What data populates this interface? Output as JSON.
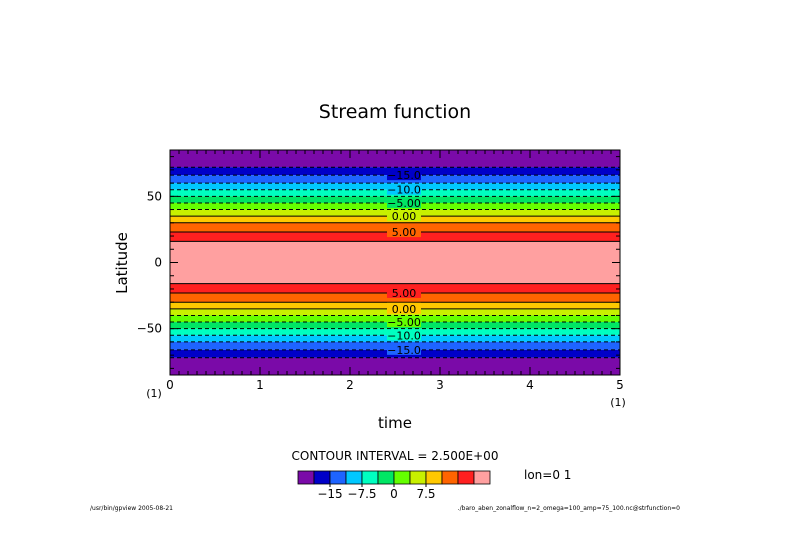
{
  "chart_data": {
    "type": "heatmap",
    "title": "Stream function",
    "xlabel": "time",
    "ylabel": "Latitude",
    "xlim": [
      0,
      5
    ],
    "ylim": [
      -85,
      85
    ],
    "x_ticks": [
      "0",
      "1",
      "2",
      "3",
      "4",
      "5"
    ],
    "x_unit_left": "(1)",
    "x_unit_right": "(1)",
    "y_ticks": [
      {
        "value": 50,
        "label": "50"
      },
      {
        "value": 0,
        "label": "0"
      },
      {
        "value": -50,
        "label": "−50"
      }
    ],
    "bands": [
      {
        "from": 72,
        "to": 85,
        "level": 0
      },
      {
        "from": 66,
        "to": 72,
        "level": 1
      },
      {
        "from": 60,
        "to": 66,
        "level": 2
      },
      {
        "from": 55,
        "to": 60,
        "level": 3
      },
      {
        "from": 50,
        "to": 55,
        "level": 4
      },
      {
        "from": 45,
        "to": 50,
        "level": 5
      },
      {
        "from": 40,
        "to": 45,
        "level": 6
      },
      {
        "from": 35,
        "to": 40,
        "level": 7
      },
      {
        "from": 30,
        "to": 35,
        "level": 8
      },
      {
        "from": 23,
        "to": 30,
        "level": 9
      },
      {
        "from": 16,
        "to": 23,
        "level": 10
      },
      {
        "from": -16,
        "to": 16,
        "level": 11
      },
      {
        "from": -23,
        "to": -16,
        "level": 10
      },
      {
        "from": -30,
        "to": -23,
        "level": 9
      },
      {
        "from": -35,
        "to": -30,
        "level": 8
      },
      {
        "from": -40,
        "to": -35,
        "level": 7
      },
      {
        "from": -45,
        "to": -40,
        "level": 6
      },
      {
        "from": -50,
        "to": -45,
        "level": 5
      },
      {
        "from": -55,
        "to": -50,
        "level": 4
      },
      {
        "from": -60,
        "to": -55,
        "level": 3
      },
      {
        "from": -66,
        "to": -60,
        "level": 2
      },
      {
        "from": -72,
        "to": -66,
        "level": 1
      },
      {
        "from": -85,
        "to": -72,
        "level": 0
      }
    ],
    "contours": [
      {
        "lat": 72,
        "dashed": true
      },
      {
        "lat": 66,
        "dashed": true
      },
      {
        "lat": 60,
        "dashed": true
      },
      {
        "lat": 55,
        "dashed": true
      },
      {
        "lat": 50,
        "dashed": true
      },
      {
        "lat": 45,
        "dashed": true
      },
      {
        "lat": 40,
        "dashed": true
      },
      {
        "lat": 35,
        "dashed": false
      },
      {
        "lat": 30,
        "dashed": false
      },
      {
        "lat": 23,
        "dashed": false
      },
      {
        "lat": 16,
        "dashed": false
      },
      {
        "lat": -16,
        "dashed": false
      },
      {
        "lat": -23,
        "dashed": false
      },
      {
        "lat": -30,
        "dashed": false
      },
      {
        "lat": -35,
        "dashed": false
      },
      {
        "lat": -40,
        "dashed": true
      },
      {
        "lat": -45,
        "dashed": true
      },
      {
        "lat": -50,
        "dashed": true
      },
      {
        "lat": -55,
        "dashed": true
      },
      {
        "lat": -60,
        "dashed": true
      },
      {
        "lat": -66,
        "dashed": true
      },
      {
        "lat": -72,
        "dashed": true
      }
    ],
    "contour_labels": [
      {
        "lat": 66,
        "text": "−15.0"
      },
      {
        "lat": 55,
        "text": "−10.0"
      },
      {
        "lat": 45,
        "text": "−5.00"
      },
      {
        "lat": 35,
        "text": "0.00"
      },
      {
        "lat": 23,
        "text": "5.00"
      },
      {
        "lat": -23,
        "text": "5.00"
      },
      {
        "lat": -35,
        "text": "0.00"
      },
      {
        "lat": -45,
        "text": "−5.00"
      },
      {
        "lat": -55,
        "text": "−10.0"
      },
      {
        "lat": -66,
        "text": "−15.0"
      }
    ],
    "contour_interval_text": "CONTOUR INTERVAL = 2.500E+00",
    "colorbar": {
      "colors": [
        "#7a0aa8",
        "#0000c8",
        "#1e64ff",
        "#00c8ff",
        "#00ffc0",
        "#00e664",
        "#64ff00",
        "#c8f000",
        "#ffc800",
        "#ff6400",
        "#ff2020",
        "#ffa0a0"
      ],
      "tick_labels": [
        {
          "position": 2,
          "text": "−15"
        },
        {
          "position": 4,
          "text": "−7.5"
        },
        {
          "position": 6,
          "text": "0"
        },
        {
          "position": 8,
          "text": "7.5"
        }
      ]
    },
    "annotation": "lon=0 1",
    "footer_left": "/usr/bin/gpview  2005-08-21",
    "footer_right": "./baro_aben_zonalflow_n=2_omega=100_amp=75_100.nc@strfunction=0"
  }
}
